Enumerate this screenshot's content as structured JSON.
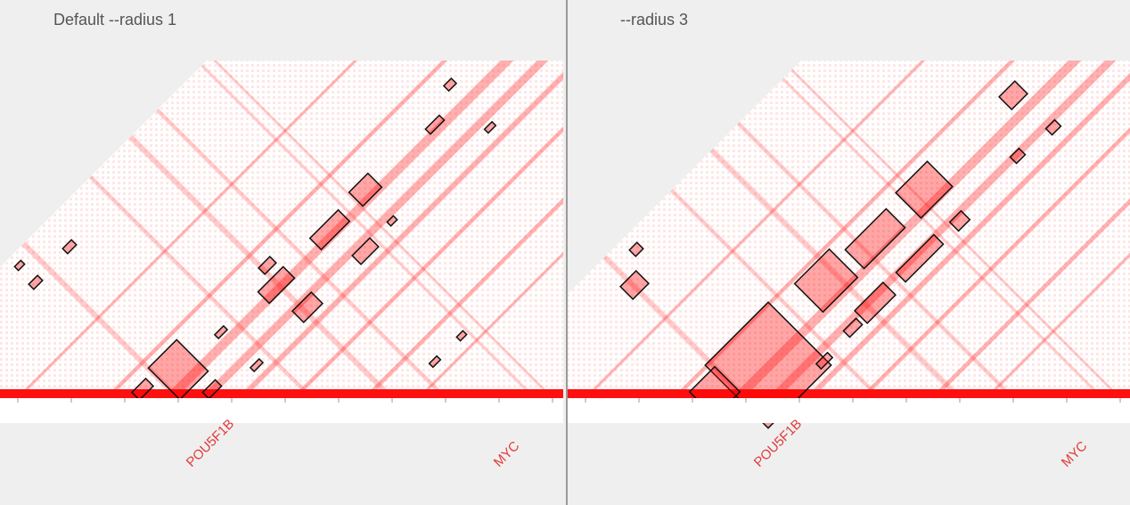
{
  "panels": [
    {
      "title": "Default --radius 1",
      "genes": [
        "POU5F1B",
        "MYC"
      ]
    },
    {
      "title": "--radius 3",
      "genes": [
        "POU5F1B",
        "MYC"
      ]
    }
  ]
}
